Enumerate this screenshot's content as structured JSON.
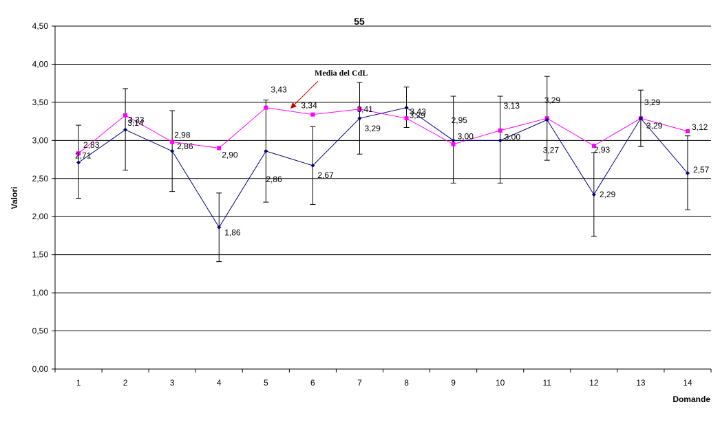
{
  "chart_data": {
    "type": "line",
    "title": "55",
    "xlabel": "Domande",
    "ylabel": "Valori",
    "ylim": [
      0,
      4.5
    ],
    "ytick_step": 0.5,
    "yticks": [
      "0,00",
      "0,50",
      "1,00",
      "1,50",
      "2,00",
      "2,50",
      "3,00",
      "3,50",
      "4,00",
      "4,50"
    ],
    "categories": [
      "1",
      "2",
      "3",
      "4",
      "5",
      "6",
      "7",
      "8",
      "9",
      "10",
      "11",
      "12",
      "13",
      "14"
    ],
    "grid": true,
    "series": [
      {
        "color": "#000080",
        "marker": "diamond",
        "values": [
          2.71,
          3.14,
          2.86,
          1.86,
          2.86,
          2.67,
          3.29,
          3.43,
          3.0,
          3.0,
          3.27,
          2.29,
          3.29,
          2.57
        ],
        "value_labels": [
          "2,71",
          "3,14",
          "2,86",
          "1,86",
          "2,86",
          "2,67",
          "3,29",
          "3,43",
          "3,00",
          "3,00",
          "3,27",
          "2,29",
          "3,29",
          "2,57"
        ],
        "error_low": [
          2.24,
          2.61,
          2.33,
          1.41,
          2.19,
          2.16,
          2.82,
          3.17,
          2.44,
          2.44,
          2.74,
          1.74,
          2.92,
          2.09
        ],
        "error_high": [
          3.2,
          3.68,
          3.39,
          2.31,
          3.53,
          3.18,
          3.76,
          3.7,
          3.58,
          3.58,
          3.84,
          2.84,
          3.66,
          3.06
        ]
      },
      {
        "name": "Media del CdL",
        "color": "#ff00ff",
        "marker": "square",
        "values": [
          2.83,
          3.33,
          2.98,
          2.9,
          3.43,
          3.34,
          3.41,
          3.29,
          2.95,
          3.13,
          3.29,
          2.93,
          3.29,
          3.12
        ],
        "value_labels": [
          "2,83",
          "3,33",
          "2,98",
          "2,90",
          "3,43",
          "3,34",
          "3,41",
          "3,29",
          "2,95",
          "3,13",
          "3,29",
          "2,93",
          "3,29",
          "3,12"
        ]
      }
    ],
    "annotation": {
      "text": "Media del CdL",
      "points_to_series": "Media del CdL",
      "color": "#cc0000"
    }
  }
}
